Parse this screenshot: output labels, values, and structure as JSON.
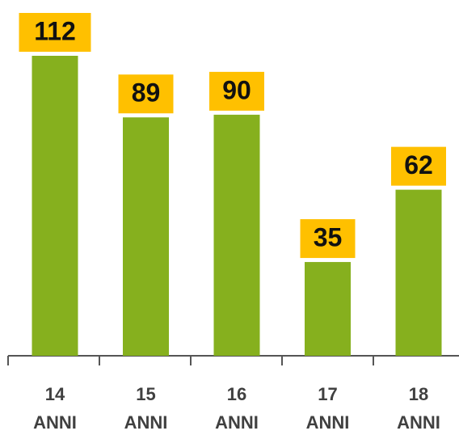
{
  "chart_data": {
    "type": "bar",
    "categories": [
      "14 ANNI",
      "15 ANNI",
      "16 ANNI",
      "17 ANNI",
      "18 ANNI"
    ],
    "values": [
      112,
      89,
      90,
      35,
      62
    ],
    "color": "#86b01e",
    "label_color": "#ffc000"
  }
}
